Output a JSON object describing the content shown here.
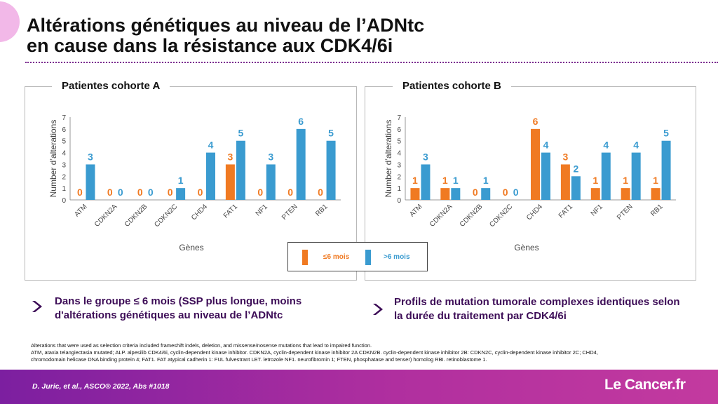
{
  "title": {
    "line1": "Altérations génétiques au niveau de l’ADNtc",
    "line2": "en cause dans la résistance aux CDK4/6i"
  },
  "colors": {
    "short": "#f07a22",
    "long": "#3a9bd0",
    "accent": "#7b2a8f"
  },
  "legend": {
    "short_label": "≤6 mois",
    "long_label": ">6 mois"
  },
  "chart_data": [
    {
      "type": "bar",
      "title": "Patientes cohorte A",
      "xlabel": "Gènes",
      "ylabel": "Number d’alterations",
      "ylim": [
        0,
        7
      ],
      "yticks": [
        0,
        1,
        2,
        3,
        4,
        5,
        6,
        7
      ],
      "categories": [
        "ATM",
        "CDKN2A",
        "CDKN2B",
        "CDKN2C",
        "CHD4",
        "FAT1",
        "NF1",
        "PTEN",
        "RB1"
      ],
      "series": [
        {
          "name": "≤6 mois",
          "color": "#f07a22",
          "values": [
            0,
            0,
            0,
            0,
            0,
            3,
            0,
            0,
            0
          ]
        },
        {
          "name": ">6 mois",
          "color": "#3a9bd0",
          "values": [
            3,
            0,
            0,
            1,
            4,
            5,
            3,
            6,
            5
          ]
        }
      ]
    },
    {
      "type": "bar",
      "title": "Patientes cohorte B",
      "xlabel": "Gènes",
      "ylabel": "Number d’alterations",
      "ylim": [
        0,
        7
      ],
      "yticks": [
        0,
        1,
        2,
        3,
        4,
        5,
        6,
        7
      ],
      "categories": [
        "ATM",
        "CDKN2A",
        "CDKN2B",
        "CDKN2C",
        "CHD4",
        "FAT1",
        "NF1",
        "PTEN",
        "RB1"
      ],
      "series": [
        {
          "name": "≤6 mois",
          "color": "#f07a22",
          "values": [
            1,
            1,
            0,
            0,
            6,
            3,
            1,
            1,
            1
          ]
        },
        {
          "name": ">6 mois",
          "color": "#3a9bd0",
          "values": [
            3,
            1,
            1,
            0,
            4,
            2,
            4,
            4,
            5
          ]
        }
      ]
    }
  ],
  "bullets": {
    "left": "Dans le groupe ≤ 6 mois (SSP plus longue, moins d'altérations génétiques au niveau de l’ADNtc",
    "right": "Profils de mutation tumorale complexes identiques selon la durée du traitement par CDK4/6i"
  },
  "footnote": {
    "line1": "Alterations that were used as selection criteria included frameshift indels, deletion, and missense/nosense mutations that lead to impaired function.",
    "line2": "ATM, ataxia telangiectasia mutated; ALP. alpesilib CDK4/6i, cyclin-dependent kinase inhibitor. CDKN2A, cyclin-dependent kinase inhibitor 2A CDKN2B. cyclin-dependent kinase inhibitor 2B: CDKN2C, cyclin-dependent kinase inhibitor 2C; CHD4,",
    "line3": "chromodomain helicase DNA binding protein 4; FAT1. FAT atypical cadherin 1: FUL fulvestrant LET. letrozole NF1. neurofibromin 1; FTEN, phosphatase and tenser) homolog RBI. retinoblastome 1."
  },
  "citation": "D. Juric, et al., ASCO® 2022, Abs #1018",
  "logo": "Le Cancer.fr"
}
